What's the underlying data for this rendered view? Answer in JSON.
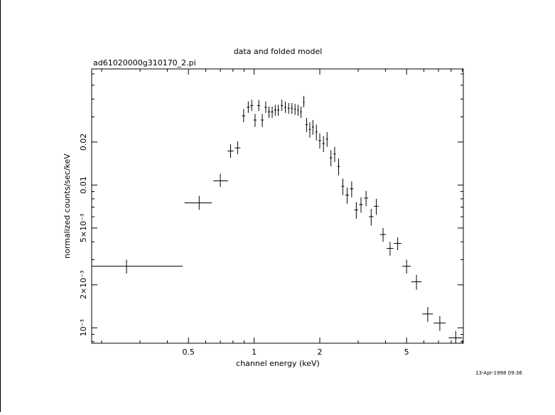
{
  "chart_data": {
    "type": "scatter",
    "title": "data and folded model",
    "subtitle": "ad61020000g310170_2.pi",
    "xlabel": "channel energy (keV)",
    "ylabel": "normalized counts/sec/keV",
    "x_scale": "log",
    "y_scale": "log",
    "xlim": [
      0.18,
      9.1
    ],
    "ylim": [
      0.00078,
      0.065
    ],
    "x_ticks": [
      {
        "value": 0.5,
        "label": "0.5"
      },
      {
        "value": 1,
        "label": "1"
      },
      {
        "value": 2,
        "label": "2"
      },
      {
        "value": 5,
        "label": "5"
      }
    ],
    "y_ticks": [
      {
        "value": 0.001,
        "label": "10⁻³"
      },
      {
        "value": 0.002,
        "label": "2×10⁻³"
      },
      {
        "value": 0.005,
        "label": "5×10⁻³"
      },
      {
        "value": 0.01,
        "label": "0.01"
      },
      {
        "value": 0.02,
        "label": "0.02"
      }
    ],
    "grid": false,
    "legend": "none",
    "series": [
      {
        "points": [
          {
            "x": 0.26,
            "y": 0.0027,
            "xerr": [
              0.08,
              0.21
            ],
            "yerr": [
              0.0003,
              0.0003
            ]
          },
          {
            "x": 0.56,
            "y": 0.0075,
            "xerr": [
              0.08,
              0.08
            ],
            "yerr": [
              0.0008,
              0.0009
            ]
          },
          {
            "x": 0.7,
            "y": 0.0107,
            "xerr": [
              0.05,
              0.06
            ],
            "yerr": [
              0.001,
              0.0013
            ]
          },
          {
            "x": 0.78,
            "y": 0.0173,
            "xerr": [
              0.025,
              0.025
            ],
            "yerr": [
              0.0018,
              0.002
            ]
          },
          {
            "x": 0.84,
            "y": 0.0182,
            "xerr": [
              0.025,
              0.025
            ],
            "yerr": [
              0.0018,
              0.002
            ]
          },
          {
            "x": 0.895,
            "y": 0.0305,
            "xerr": [
              0.015,
              0.015
            ],
            "yerr": [
              0.003,
              0.0035
            ]
          },
          {
            "x": 0.94,
            "y": 0.035,
            "xerr": [
              0.015,
              0.015
            ],
            "yerr": [
              0.003,
              0.0035
            ]
          },
          {
            "x": 0.975,
            "y": 0.036,
            "xerr": [
              0.015,
              0.015
            ],
            "yerr": [
              0.003,
              0.0035
            ]
          },
          {
            "x": 1.01,
            "y": 0.0285,
            "xerr": [
              0.015,
              0.015
            ],
            "yerr": [
              0.003,
              0.003
            ]
          },
          {
            "x": 1.05,
            "y": 0.036,
            "xerr": [
              0.015,
              0.015
            ],
            "yerr": [
              0.003,
              0.0035
            ]
          },
          {
            "x": 1.09,
            "y": 0.0285,
            "xerr": [
              0.015,
              0.015
            ],
            "yerr": [
              0.003,
              0.003
            ]
          },
          {
            "x": 1.13,
            "y": 0.035,
            "xerr": [
              0.015,
              0.015
            ],
            "yerr": [
              0.003,
              0.0035
            ]
          },
          {
            "x": 1.17,
            "y": 0.0325,
            "xerr": [
              0.015,
              0.015
            ],
            "yerr": [
              0.003,
              0.003
            ]
          },
          {
            "x": 1.21,
            "y": 0.0325,
            "xerr": [
              0.015,
              0.015
            ],
            "yerr": [
              0.003,
              0.003
            ]
          },
          {
            "x": 1.25,
            "y": 0.0335,
            "xerr": [
              0.015,
              0.015
            ],
            "yerr": [
              0.003,
              0.003
            ]
          },
          {
            "x": 1.29,
            "y": 0.0335,
            "xerr": [
              0.015,
              0.015
            ],
            "yerr": [
              0.003,
              0.003
            ]
          },
          {
            "x": 1.34,
            "y": 0.036,
            "xerr": [
              0.015,
              0.015
            ],
            "yerr": [
              0.003,
              0.0035
            ]
          },
          {
            "x": 1.39,
            "y": 0.035,
            "xerr": [
              0.015,
              0.015
            ],
            "yerr": [
              0.003,
              0.0035
            ]
          },
          {
            "x": 1.44,
            "y": 0.0345,
            "xerr": [
              0.015,
              0.015
            ],
            "yerr": [
              0.003,
              0.003
            ]
          },
          {
            "x": 1.49,
            "y": 0.0345,
            "xerr": [
              0.015,
              0.015
            ],
            "yerr": [
              0.003,
              0.003
            ]
          },
          {
            "x": 1.54,
            "y": 0.034,
            "xerr": [
              0.015,
              0.015
            ],
            "yerr": [
              0.003,
              0.003
            ]
          },
          {
            "x": 1.59,
            "y": 0.0335,
            "xerr": [
              0.015,
              0.015
            ],
            "yerr": [
              0.003,
              0.003
            ]
          },
          {
            "x": 1.64,
            "y": 0.0325,
            "xerr": [
              0.015,
              0.015
            ],
            "yerr": [
              0.003,
              0.003
            ]
          },
          {
            "x": 1.69,
            "y": 0.038,
            "xerr": [
              0.015,
              0.015
            ],
            "yerr": [
              0.003,
              0.004
            ]
          },
          {
            "x": 1.74,
            "y": 0.0265,
            "xerr": [
              0.02,
              0.02
            ],
            "yerr": [
              0.003,
              0.003
            ]
          },
          {
            "x": 1.8,
            "y": 0.0245,
            "xerr": [
              0.02,
              0.02
            ],
            "yerr": [
              0.003,
              0.003
            ]
          },
          {
            "x": 1.86,
            "y": 0.0255,
            "xerr": [
              0.02,
              0.02
            ],
            "yerr": [
              0.003,
              0.003
            ]
          },
          {
            "x": 1.93,
            "y": 0.0235,
            "xerr": [
              0.02,
              0.02
            ],
            "yerr": [
              0.003,
              0.003
            ]
          },
          {
            "x": 2.0,
            "y": 0.0205,
            "xerr": [
              0.025,
              0.025
            ],
            "yerr": [
              0.0025,
              0.0025
            ]
          },
          {
            "x": 2.08,
            "y": 0.0195,
            "xerr": [
              0.025,
              0.025
            ],
            "yerr": [
              0.0025,
              0.0025
            ]
          },
          {
            "x": 2.16,
            "y": 0.021,
            "xerr": [
              0.025,
              0.025
            ],
            "yerr": [
              0.0025,
              0.0025
            ]
          },
          {
            "x": 2.25,
            "y": 0.0155,
            "xerr": [
              0.03,
              0.03
            ],
            "yerr": [
              0.002,
              0.002
            ]
          },
          {
            "x": 2.34,
            "y": 0.0165,
            "xerr": [
              0.03,
              0.03
            ],
            "yerr": [
              0.002,
              0.002
            ]
          },
          {
            "x": 2.44,
            "y": 0.0135,
            "xerr": [
              0.03,
              0.03
            ],
            "yerr": [
              0.0018,
              0.0018
            ]
          },
          {
            "x": 2.55,
            "y": 0.0098,
            "xerr": [
              0.04,
              0.04
            ],
            "yerr": [
              0.0013,
              0.0013
            ]
          },
          {
            "x": 2.67,
            "y": 0.0085,
            "xerr": [
              0.05,
              0.05
            ],
            "yerr": [
              0.0011,
              0.0011
            ]
          },
          {
            "x": 2.8,
            "y": 0.0094,
            "xerr": [
              0.05,
              0.05
            ],
            "yerr": [
              0.0012,
              0.0012
            ]
          },
          {
            "x": 2.94,
            "y": 0.0067,
            "xerr": [
              0.06,
              0.06
            ],
            "yerr": [
              0.0009,
              0.0009
            ]
          },
          {
            "x": 3.09,
            "y": 0.0073,
            "xerr": [
              0.06,
              0.06
            ],
            "yerr": [
              0.0009,
              0.0009
            ]
          },
          {
            "x": 3.26,
            "y": 0.0081,
            "xerr": [
              0.07,
              0.07
            ],
            "yerr": [
              0.001,
              0.001
            ]
          },
          {
            "x": 3.44,
            "y": 0.006,
            "xerr": [
              0.08,
              0.08
            ],
            "yerr": [
              0.0008,
              0.0008
            ]
          },
          {
            "x": 3.63,
            "y": 0.0071,
            "xerr": [
              0.09,
              0.09
            ],
            "yerr": [
              0.0009,
              0.0009
            ]
          },
          {
            "x": 3.9,
            "y": 0.0045,
            "xerr": [
              0.12,
              0.12
            ],
            "yerr": [
              0.0005,
              0.0005
            ]
          },
          {
            "x": 4.2,
            "y": 0.0036,
            "xerr": [
              0.15,
              0.15
            ],
            "yerr": [
              0.0004,
              0.0004
            ]
          },
          {
            "x": 4.55,
            "y": 0.0039,
            "xerr": [
              0.18,
              0.18
            ],
            "yerr": [
              0.0004,
              0.0004
            ]
          },
          {
            "x": 5.0,
            "y": 0.0027,
            "xerr": [
              0.22,
              0.22
            ],
            "yerr": [
              0.0003,
              0.0003
            ]
          },
          {
            "x": 5.55,
            "y": 0.0021,
            "xerr": [
              0.3,
              0.3
            ],
            "yerr": [
              0.00025,
              0.00025
            ]
          },
          {
            "x": 6.25,
            "y": 0.00125,
            "xerr": [
              0.35,
              0.35
            ],
            "yerr": [
              0.00015,
              0.00015
            ]
          },
          {
            "x": 7.1,
            "y": 0.00108,
            "xerr": [
              0.45,
              0.45
            ],
            "yerr": [
              0.00013,
              0.00013
            ]
          },
          {
            "x": 8.4,
            "y": 0.00085,
            "xerr": [
              0.6,
              0.6
            ],
            "yerr": [
              0.0001,
              0.0001
            ]
          }
        ]
      }
    ]
  },
  "timestamp": "13-Apr-1998 09:36"
}
